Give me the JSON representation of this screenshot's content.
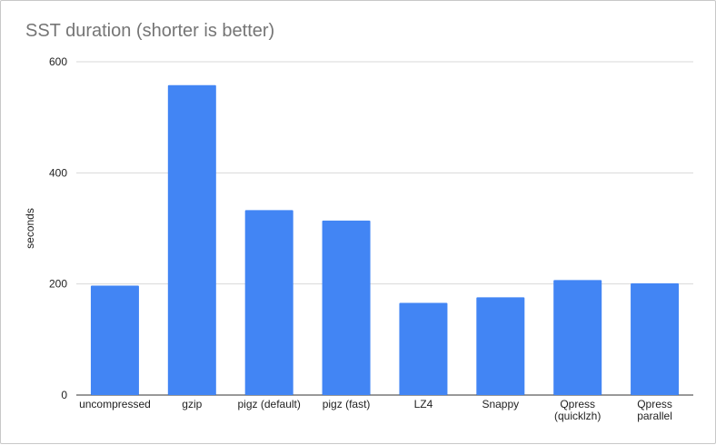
{
  "chart_data": {
    "type": "bar",
    "title": "SST duration (shorter is better)",
    "xlabel": "",
    "ylabel": "seconds",
    "ylim": [
      0,
      600
    ],
    "yticks": [
      0,
      200,
      400,
      600
    ],
    "grid": true,
    "legend": "none",
    "categories": [
      [
        "uncompressed"
      ],
      [
        "gzip"
      ],
      [
        "pigz (default)"
      ],
      [
        "pigz (fast)"
      ],
      [
        "LZ4"
      ],
      [
        "Snappy"
      ],
      [
        "Qpress",
        "(quicklzh)"
      ],
      [
        "Qpress",
        "parallel"
      ]
    ],
    "series": [
      {
        "values": [
          197,
          558,
          333,
          314,
          166,
          176,
          207,
          201
        ],
        "color": "#4285f4"
      }
    ]
  }
}
